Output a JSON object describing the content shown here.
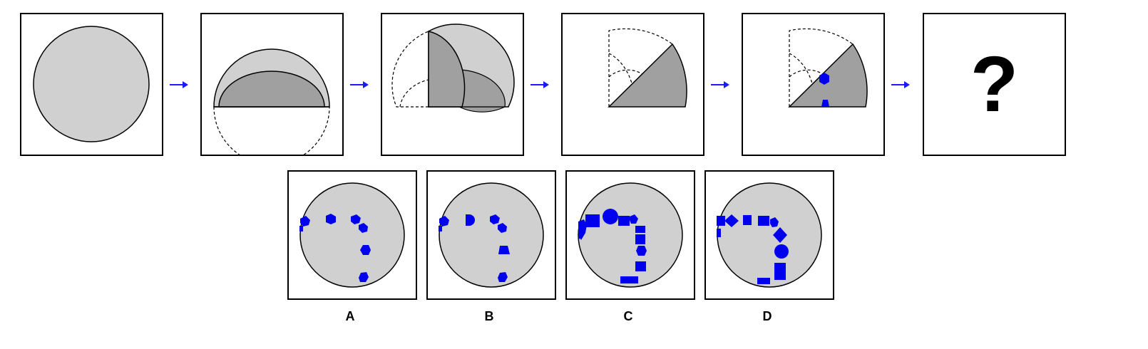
{
  "colors": {
    "paper_light": "#d0d0d0",
    "paper_dark": "#a0a0a0",
    "hole": "#0000ee",
    "outline": "#000000",
    "arrow": "#1a1aff"
  },
  "steps": [
    {
      "name": "unfolded-circle"
    },
    {
      "name": "fold-1-half"
    },
    {
      "name": "fold-2-quarter"
    },
    {
      "name": "fold-3-eighth"
    },
    {
      "name": "punched-eighth"
    },
    {
      "name": "answer",
      "text": "?"
    }
  ],
  "options": [
    {
      "label": "A"
    },
    {
      "label": "B"
    },
    {
      "label": "C"
    },
    {
      "label": "D"
    }
  ]
}
